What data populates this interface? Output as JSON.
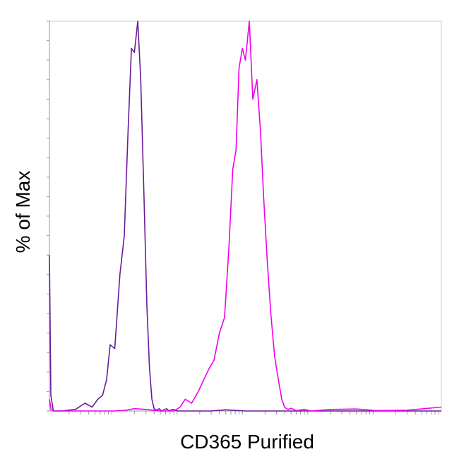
{
  "chart_data": {
    "type": "line",
    "title": "",
    "xlabel": "CD365 Purified",
    "ylabel": "% of Max",
    "x_scale": "log",
    "xlim": [
      10,
      10000000
    ],
    "ylim": [
      0,
      100
    ],
    "grid": false,
    "legend": "none",
    "series": [
      {
        "color": "#6a1b9a",
        "x": [
          10,
          10.5,
          11.5,
          15,
          25,
          35,
          45,
          55,
          65,
          75,
          85,
          100,
          120,
          140,
          160,
          180,
          200,
          225,
          250,
          280,
          310,
          340,
          370,
          400,
          440,
          480,
          520,
          570,
          620,
          680,
          740,
          800,
          870,
          950,
          1050,
          1200,
          1500,
          2000,
          3000,
          5000,
          10000,
          100000,
          1000000,
          10000000
        ],
        "y": [
          40,
          4,
          0,
          0,
          0.4,
          2,
          1,
          3,
          4,
          8,
          17,
          16,
          35,
          45,
          72,
          93,
          92,
          100,
          85,
          55,
          27,
          11,
          3,
          0.6,
          0.2,
          0.6,
          0,
          0.3,
          0.6,
          0,
          0.3,
          0.4,
          0.1,
          0,
          0,
          0,
          0,
          0,
          0,
          0.3,
          0,
          0,
          0,
          0
        ]
      },
      {
        "color": "#ee00ee",
        "x": [
          10,
          10.6,
          12,
          20,
          50,
          100,
          150,
          200,
          300,
          500,
          800,
          1000,
          1200,
          1500,
          1900,
          2300,
          2800,
          3300,
          4000,
          4800,
          5600,
          6400,
          7200,
          8000,
          9000,
          10000,
          11500,
          13000,
          15000,
          17000,
          19000,
          21500,
          24500,
          28000,
          32000,
          36000,
          40000,
          45000,
          50000,
          60000,
          80000,
          100000,
          200000,
          500000,
          1000000,
          3000000,
          10000000
        ],
        "y": [
          3,
          0.3,
          0,
          0,
          0,
          0,
          0.2,
          0.6,
          0.4,
          0,
          0,
          1,
          3,
          2,
          5,
          8,
          11,
          13,
          20,
          24,
          42,
          62,
          67,
          88,
          93,
          90,
          100,
          80,
          85,
          72,
          55,
          39,
          25,
          14,
          8,
          3,
          0.9,
          0.4,
          0.7,
          0.1,
          0.4,
          0,
          0.4,
          0.5,
          0.1,
          0.2,
          1
        ]
      }
    ]
  }
}
